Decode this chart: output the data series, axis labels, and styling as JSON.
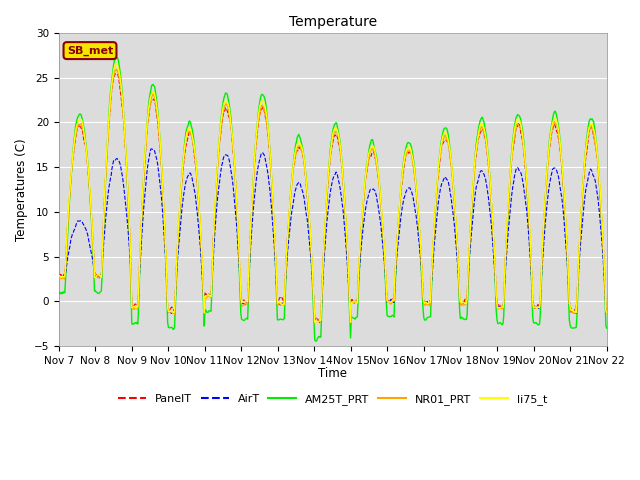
{
  "title": "Temperature",
  "ylabel": "Temperatures (C)",
  "xlabel": "Time",
  "ylim": [
    -5,
    30
  ],
  "background_color": "#dcdcdc",
  "plot_bg_color": "#dcdcdc",
  "grid_color": "#ffffff",
  "label_box_text": "SB_met",
  "label_box_facecolor": "#f5e600",
  "label_box_edgecolor": "#8b0000",
  "label_box_textcolor": "#8b0000",
  "xtick_labels": [
    "Nov 7",
    "Nov 8",
    "Nov 9",
    "Nov 10",
    "Nov 11",
    "Nov 12",
    "Nov 13",
    "Nov 14",
    "Nov 15",
    "Nov 16",
    "Nov 17",
    "Nov 18",
    "Nov 19",
    "Nov 20",
    "Nov 21",
    "Nov 22"
  ],
  "lines": [
    {
      "label": "PanelT",
      "color": "#ff0000",
      "linewidth": 0.8,
      "linestyle": "--",
      "zorder": 4
    },
    {
      "label": "AirT",
      "color": "#0000ff",
      "linewidth": 0.8,
      "linestyle": "--",
      "zorder": 3
    },
    {
      "label": "AM25T_PRT",
      "color": "#00ee00",
      "linewidth": 1.0,
      "linestyle": "-",
      "zorder": 2
    },
    {
      "label": "NR01_PRT",
      "color": "#ffa500",
      "linewidth": 1.0,
      "linestyle": "-",
      "zorder": 5
    },
    {
      "label": "li75_t",
      "color": "#ffff00",
      "linewidth": 1.0,
      "linestyle": "-",
      "zorder": 6
    }
  ]
}
